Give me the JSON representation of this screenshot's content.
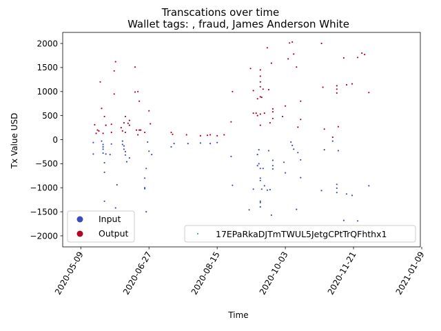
{
  "chart_data": {
    "type": "scatter",
    "title": "Transcations over time",
    "subtitle": "Wallet tags: , fraud, James Anderson White",
    "xlabel": "Time",
    "ylabel": "Tx Value USD",
    "xlim": [
      "2020-04-26",
      "2021-01-08"
    ],
    "ylim": [
      -2230,
      2230
    ],
    "x_ticks": [
      "2020-05-09",
      "2020-06-27",
      "2020-08-15",
      "2020-10-03",
      "2020-11-21",
      "2021-01-09"
    ],
    "y_ticks": [
      -2000,
      -1500,
      -1000,
      -500,
      0,
      500,
      1000,
      1500,
      2000
    ],
    "grid": false,
    "colors": {
      "input": "#3b4cc0",
      "output": "#b40426"
    },
    "legend_categories": {
      "placement": "lower-left",
      "entries": [
        {
          "label": "Input",
          "color": "#3b4cc0"
        },
        {
          "label": "Output",
          "color": "#b40426"
        }
      ]
    },
    "legend_address": {
      "placement": "lower-right",
      "label": "17EPaRkaDJTmTWUL5JetgCPtTrQFhthx1"
    },
    "series": [
      {
        "name": "Output",
        "color": "#b40426",
        "points": [
          [
            "2020-05-19",
            310
          ],
          [
            "2020-05-20",
            130
          ],
          [
            "2020-05-21",
            200
          ],
          [
            "2020-05-22",
            180
          ],
          [
            "2020-05-23",
            1200
          ],
          [
            "2020-05-24",
            650
          ],
          [
            "2020-05-25",
            130
          ],
          [
            "2020-05-26",
            480
          ],
          [
            "2020-05-27",
            300
          ],
          [
            "2020-05-27",
            300
          ],
          [
            "2020-05-31",
            320
          ],
          [
            "2020-05-31",
            150
          ],
          [
            "2020-06-02",
            1430
          ],
          [
            "2020-06-02",
            950
          ],
          [
            "2020-06-03",
            1620
          ],
          [
            "2020-06-07",
            250
          ],
          [
            "2020-06-08",
            180
          ],
          [
            "2020-06-09",
            350
          ],
          [
            "2020-06-10",
            480
          ],
          [
            "2020-06-10",
            150
          ],
          [
            "2020-06-12",
            340
          ],
          [
            "2020-06-13",
            300
          ],
          [
            "2020-06-13",
            400
          ],
          [
            "2020-06-17",
            1510
          ],
          [
            "2020-06-17",
            990
          ],
          [
            "2020-06-18",
            200
          ],
          [
            "2020-06-19",
            1000
          ],
          [
            "2020-06-19",
            100
          ],
          [
            "2020-06-20",
            800
          ],
          [
            "2020-06-20",
            200
          ],
          [
            "2020-06-21",
            200
          ],
          [
            "2020-06-21",
            200
          ],
          [
            "2020-06-24",
            150
          ],
          [
            "2020-06-27",
            600
          ],
          [
            "2020-06-28",
            330
          ],
          [
            "2020-07-13",
            150
          ],
          [
            "2020-07-14",
            110
          ],
          [
            "2020-07-24",
            100
          ],
          [
            "2020-08-03",
            80
          ],
          [
            "2020-08-08",
            90
          ],
          [
            "2020-08-10",
            100
          ],
          [
            "2020-08-15",
            80
          ],
          [
            "2020-08-20",
            100
          ],
          [
            "2020-08-25",
            370
          ],
          [
            "2020-08-26",
            1000
          ],
          [
            "2020-09-08",
            1480
          ],
          [
            "2020-09-10",
            1020
          ],
          [
            "2020-09-10",
            550
          ],
          [
            "2020-09-12",
            550
          ],
          [
            "2020-09-13",
            850
          ],
          [
            "2020-09-13",
            500
          ],
          [
            "2020-09-15",
            300
          ],
          [
            "2020-09-15",
            1450
          ],
          [
            "2020-09-15",
            1320
          ],
          [
            "2020-09-15",
            1100
          ],
          [
            "2020-09-15",
            1200
          ],
          [
            "2020-09-15",
            890
          ],
          [
            "2020-09-15",
            530
          ],
          [
            "2020-09-16",
            880
          ],
          [
            "2020-09-17",
            1050
          ],
          [
            "2020-09-18",
            550
          ],
          [
            "2020-09-20",
            1910
          ],
          [
            "2020-09-21",
            1040
          ],
          [
            "2020-09-22",
            350
          ],
          [
            "2020-09-23",
            1590
          ],
          [
            "2020-09-24",
            640
          ],
          [
            "2020-09-24",
            580
          ],
          [
            "2020-09-24",
            440
          ],
          [
            "2020-10-01",
            480
          ],
          [
            "2020-10-03",
            700
          ],
          [
            "2020-10-05",
            1680
          ],
          [
            "2020-10-06",
            2010
          ],
          [
            "2020-10-08",
            2030
          ],
          [
            "2020-10-09",
            1780
          ],
          [
            "2020-10-11",
            1510
          ],
          [
            "2020-10-12",
            260
          ],
          [
            "2020-10-14",
            800
          ],
          [
            "2020-10-14",
            420
          ],
          [
            "2020-10-29",
            2000
          ],
          [
            "2020-10-30",
            1090
          ],
          [
            "2020-10-31",
            220
          ],
          [
            "2020-11-06",
            50
          ],
          [
            "2020-11-09",
            1120
          ],
          [
            "2020-11-09",
            1050
          ],
          [
            "2020-11-09",
            970
          ],
          [
            "2020-11-10",
            270
          ],
          [
            "2020-11-14",
            1700
          ],
          [
            "2020-11-16",
            1140
          ],
          [
            "2020-11-20",
            1160
          ],
          [
            "2020-11-24",
            1710
          ],
          [
            "2020-11-27",
            1800
          ],
          [
            "2020-11-29",
            1770
          ],
          [
            "2020-12-02",
            980
          ]
        ]
      },
      {
        "name": "Input",
        "color": "#3b4cc0",
        "points": [
          [
            "2020-05-18",
            -60
          ],
          [
            "2020-05-18",
            -300
          ],
          [
            "2020-05-24",
            -30
          ],
          [
            "2020-05-25",
            -100
          ],
          [
            "2020-05-25",
            -150
          ],
          [
            "2020-05-25",
            -200
          ],
          [
            "2020-05-25",
            -280
          ],
          [
            "2020-05-26",
            -1280
          ],
          [
            "2020-05-26",
            -480
          ],
          [
            "2020-05-26",
            -680
          ],
          [
            "2020-05-27",
            -300
          ],
          [
            "2020-05-30",
            -310
          ],
          [
            "2020-05-31",
            -90
          ],
          [
            "2020-06-03",
            -1420
          ],
          [
            "2020-06-04",
            -940
          ],
          [
            "2020-06-08",
            -30
          ],
          [
            "2020-06-08",
            -100
          ],
          [
            "2020-06-09",
            -130
          ],
          [
            "2020-06-09",
            -200
          ],
          [
            "2020-06-10",
            -250
          ],
          [
            "2020-06-10",
            -320
          ],
          [
            "2020-06-11",
            -460
          ],
          [
            "2020-06-13",
            -380
          ],
          [
            "2020-06-24",
            -800
          ],
          [
            "2020-06-24",
            -1000
          ],
          [
            "2020-06-24",
            -1020
          ],
          [
            "2020-06-25",
            -600
          ],
          [
            "2020-06-25",
            -1500
          ],
          [
            "2020-06-26",
            -50
          ],
          [
            "2020-06-27",
            -240
          ],
          [
            "2020-06-29",
            -310
          ],
          [
            "2020-07-13",
            -150
          ],
          [
            "2020-07-15",
            -80
          ],
          [
            "2020-07-25",
            -80
          ],
          [
            "2020-08-03",
            -70
          ],
          [
            "2020-08-10",
            -80
          ],
          [
            "2020-08-15",
            -60
          ],
          [
            "2020-08-25",
            -350
          ],
          [
            "2020-08-26",
            -950
          ],
          [
            "2020-09-07",
            -1460
          ],
          [
            "2020-09-10",
            -1030
          ],
          [
            "2020-09-13",
            -310
          ],
          [
            "2020-09-13",
            -540
          ],
          [
            "2020-09-14",
            -500
          ],
          [
            "2020-09-14",
            -210
          ],
          [
            "2020-09-15",
            -1280
          ],
          [
            "2020-09-15",
            -1310
          ],
          [
            "2020-09-15",
            -1400
          ],
          [
            "2020-09-15",
            -850
          ],
          [
            "2020-09-15",
            -800
          ],
          [
            "2020-09-15",
            -600
          ],
          [
            "2020-09-16",
            -1030
          ],
          [
            "2020-09-17",
            -600
          ],
          [
            "2020-09-18",
            -960
          ],
          [
            "2020-09-20",
            -1050
          ],
          [
            "2020-09-21",
            -230
          ],
          [
            "2020-09-22",
            -1040
          ],
          [
            "2020-09-23",
            -1570
          ],
          [
            "2020-09-24",
            -430
          ],
          [
            "2020-09-24",
            -540
          ],
          [
            "2020-09-24",
            -610
          ],
          [
            "2020-10-02",
            -470
          ],
          [
            "2020-10-03",
            -690
          ],
          [
            "2020-10-07",
            -50
          ],
          [
            "2020-10-08",
            -120
          ],
          [
            "2020-10-09",
            -200
          ],
          [
            "2020-10-11",
            -1450
          ],
          [
            "2020-10-12",
            -270
          ],
          [
            "2020-10-14",
            -420
          ],
          [
            "2020-10-14",
            -790
          ],
          [
            "2020-10-29",
            -1060
          ],
          [
            "2020-10-31",
            -210
          ],
          [
            "2020-11-06",
            -30
          ],
          [
            "2020-11-09",
            -1100
          ],
          [
            "2020-11-09",
            -1010
          ],
          [
            "2020-11-09",
            -930
          ],
          [
            "2020-11-10",
            -230
          ],
          [
            "2020-11-14",
            -1680
          ],
          [
            "2020-11-16",
            -1130
          ],
          [
            "2020-11-20",
            -1160
          ],
          [
            "2020-11-24",
            -1690
          ],
          [
            "2020-12-02",
            -960
          ]
        ]
      }
    ]
  }
}
